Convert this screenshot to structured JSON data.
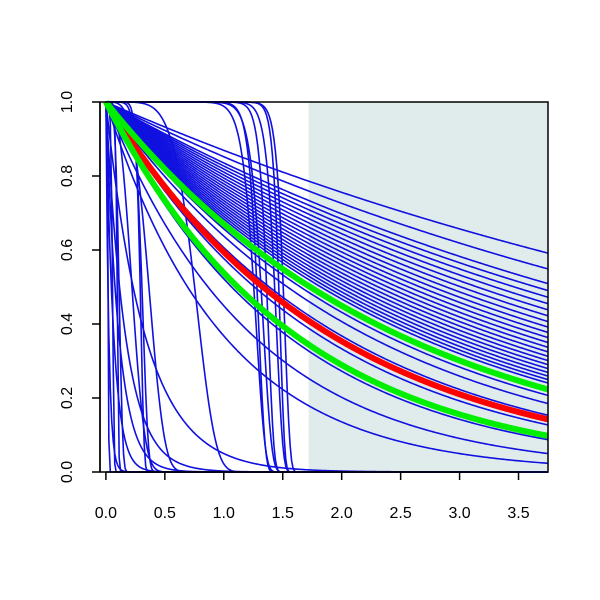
{
  "chart_data": {
    "type": "line",
    "title": "",
    "xlabel": "",
    "ylabel": "",
    "xlim": [
      -0.05,
      3.75
    ],
    "ylim": [
      0.0,
      1.0
    ],
    "x_ticks": [
      "0.0",
      "0.5",
      "1.0",
      "1.5",
      "2.0",
      "2.5",
      "3.0",
      "3.5"
    ],
    "y_ticks": [
      "0.0",
      "0.2",
      "0.4",
      "0.6",
      "0.8",
      "1.0"
    ],
    "grid": false,
    "shaded_region": {
      "x_start": 1.72,
      "x_end": 3.75,
      "color": "#e0ecec"
    },
    "colors": {
      "blue": "#1010e0",
      "red": "#ff0000",
      "green": "#00ee00"
    },
    "curve_families": {
      "exponential_decay_rates": [
        0.14,
        0.16,
        0.18,
        0.19,
        0.2,
        0.21,
        0.22,
        0.23,
        0.24,
        0.25,
        0.26,
        0.27,
        0.28,
        0.29,
        0.3,
        0.31,
        0.32,
        0.33,
        0.34,
        0.35,
        0.36,
        0.37,
        0.38,
        0.4,
        0.42,
        0.45,
        0.5,
        0.55,
        0.65,
        0.8,
        1.0,
        3.0,
        6.0,
        9.0,
        15.0,
        40.0
      ],
      "weibull_steps": [
        {
          "scale": 1.28,
          "shape": 18
        },
        {
          "scale": 1.3,
          "shape": 25
        },
        {
          "scale": 1.34,
          "shape": 20
        },
        {
          "scale": 1.38,
          "shape": 30
        },
        {
          "scale": 1.45,
          "shape": 28
        },
        {
          "scale": 1.48,
          "shape": 40
        },
        {
          "scale": 1.52,
          "shape": 35
        },
        {
          "scale": 0.3,
          "shape": 12
        },
        {
          "scale": 0.32,
          "shape": 8
        },
        {
          "scale": 0.1,
          "shape": 10
        },
        {
          "scale": 0.06,
          "shape": 6
        },
        {
          "scale": 0.02,
          "shape": 4
        },
        {
          "scale": 0.25,
          "shape": 3
        },
        {
          "scale": 0.12,
          "shape": 5
        },
        {
          "scale": 0.8,
          "shape": 6
        },
        {
          "scale": 0.4,
          "shape": 4
        }
      ]
    },
    "highlighted": [
      {
        "color": "red",
        "rate": 0.52
      },
      {
        "color": "green",
        "rate": 0.4
      },
      {
        "color": "green",
        "rate": 0.62
      }
    ]
  }
}
